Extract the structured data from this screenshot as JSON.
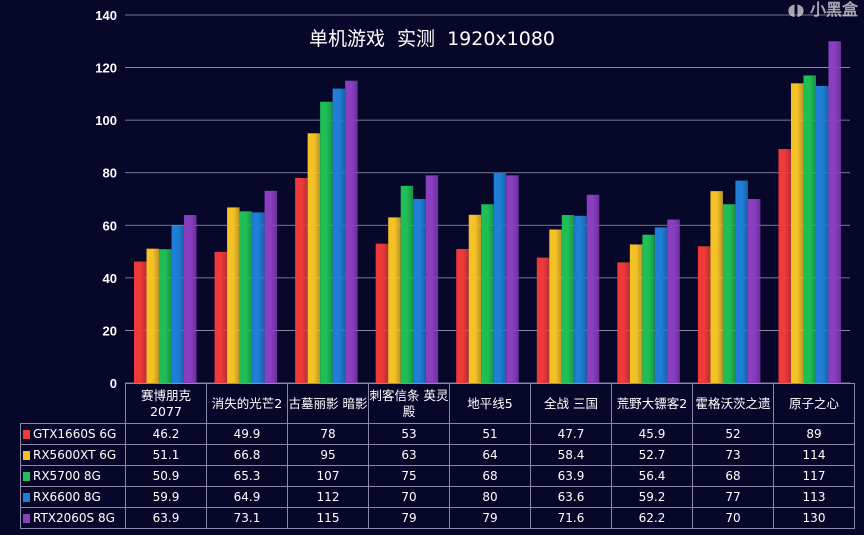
{
  "chart_data": {
    "type": "bar",
    "title": "单机游戏  实测    1920x1080",
    "categories": [
      "赛博朋克2077",
      "消失的光芒2",
      "古墓丽影 暗影",
      "刺客信条 英灵殿",
      "地平线5",
      "全战 三国",
      "荒野大镖客2",
      "霍格沃茨之遗",
      "原子之心"
    ],
    "series": [
      {
        "name": "GTX1660S 6G",
        "color": "#f03a3a",
        "values": [
          46.2,
          49.9,
          78,
          53,
          51,
          47.7,
          45.9,
          52,
          89
        ]
      },
      {
        "name": "RX5600XT 6G",
        "color": "#f5c226",
        "values": [
          51.1,
          66.8,
          95,
          63,
          64,
          58.4,
          52.7,
          73,
          114
        ]
      },
      {
        "name": "RX5700 8G",
        "color": "#1fbf55",
        "values": [
          50.9,
          65.3,
          107,
          75,
          68,
          63.9,
          56.4,
          68,
          117
        ]
      },
      {
        "name": "RX6600 8G",
        "color": "#1f7fd6",
        "values": [
          59.9,
          64.9,
          112,
          70,
          80,
          63.6,
          59.2,
          77,
          113
        ]
      },
      {
        "name": "RTX2060S 8G",
        "color": "#8a3ec0",
        "values": [
          63.9,
          73.1,
          115,
          79,
          79,
          71.6,
          62.2,
          70,
          130
        ]
      }
    ],
    "ylim": [
      0,
      140
    ],
    "yticks": [
      0,
      20,
      40,
      60,
      80,
      100,
      120,
      140
    ],
    "grid": true,
    "legend": "data-table"
  },
  "watermark": "小黑盒"
}
